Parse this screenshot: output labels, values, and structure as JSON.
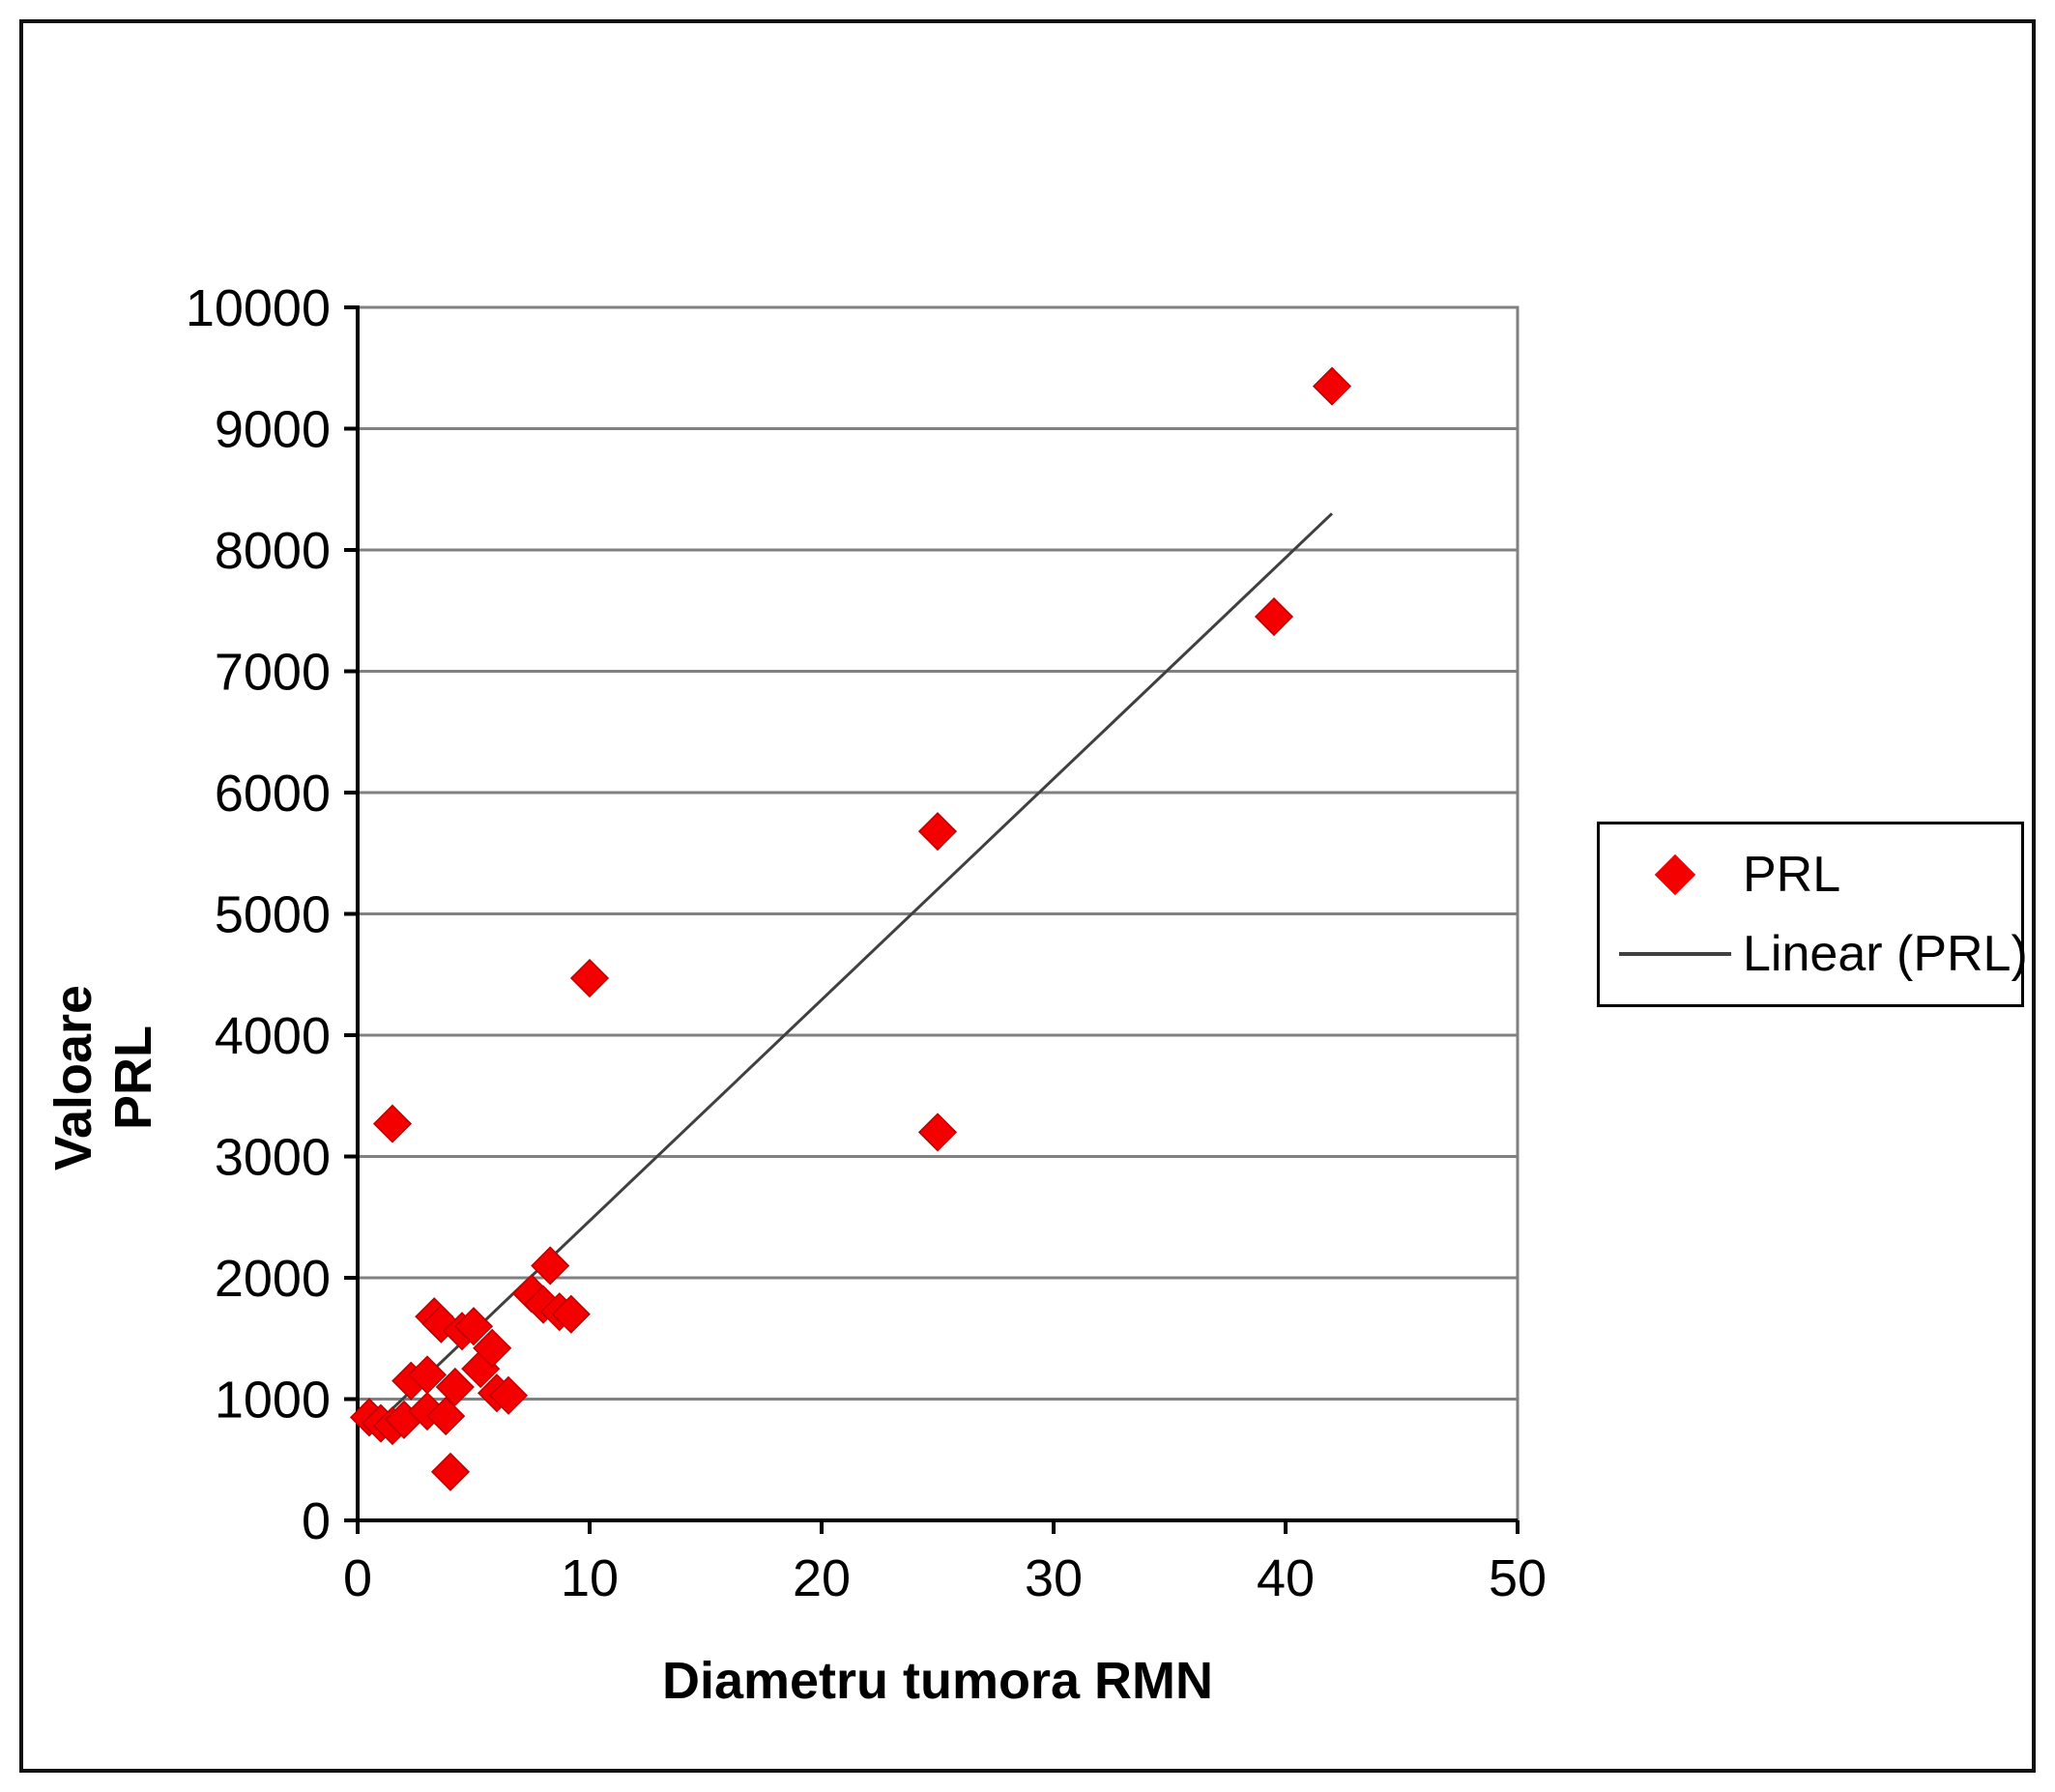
{
  "chart_data": {
    "type": "scatter",
    "title": "",
    "xlabel": "Diametru tumora RMN",
    "ylabel": "Valoare PRL",
    "ylabel_lines": [
      "Valoare",
      "PRL"
    ],
    "xlim": [
      0,
      50
    ],
    "ylim": [
      0,
      10000
    ],
    "xticks": [
      0,
      10,
      20,
      30,
      40,
      50
    ],
    "yticks": [
      0,
      1000,
      2000,
      3000,
      4000,
      5000,
      6000,
      7000,
      8000,
      9000,
      10000
    ],
    "grid": "horizontal-only",
    "grid_color": "#808080",
    "axis_color": "#000000",
    "background_color": "#ffffff",
    "legend": {
      "position": "right",
      "entries": [
        {
          "label": "PRL",
          "marker": "diamond",
          "color": "#f40000"
        },
        {
          "label": "Linear (PRL)",
          "marker": "line",
          "color": "#404040"
        }
      ]
    },
    "series": [
      {
        "name": "PRL",
        "marker": "diamond",
        "color": "#f40000",
        "points": [
          [
            0.5,
            850
          ],
          [
            1,
            800
          ],
          [
            1.5,
            780
          ],
          [
            2,
            830
          ],
          [
            2.3,
            1150
          ],
          [
            3,
            900
          ],
          [
            3,
            1200
          ],
          [
            3.3,
            1680
          ],
          [
            3.6,
            1620
          ],
          [
            3.8,
            860
          ],
          [
            4,
            400
          ],
          [
            4.2,
            1100
          ],
          [
            4.5,
            1560
          ],
          [
            5,
            1600
          ],
          [
            5.3,
            1250
          ],
          [
            5.8,
            1420
          ],
          [
            6,
            1050
          ],
          [
            6.5,
            1030
          ],
          [
            7.5,
            1870
          ],
          [
            8,
            1780
          ],
          [
            8.3,
            2100
          ],
          [
            8.7,
            1720
          ],
          [
            9.2,
            1700
          ],
          [
            1.5,
            3270
          ],
          [
            10,
            4470
          ],
          [
            25,
            3200
          ],
          [
            25,
            5680
          ],
          [
            39.5,
            7450
          ],
          [
            42,
            9350
          ]
        ]
      }
    ],
    "trendline": {
      "name": "Linear (PRL)",
      "color": "#404040",
      "x1": 1,
      "y1": 830,
      "x2": 42,
      "y2": 8300
    }
  }
}
